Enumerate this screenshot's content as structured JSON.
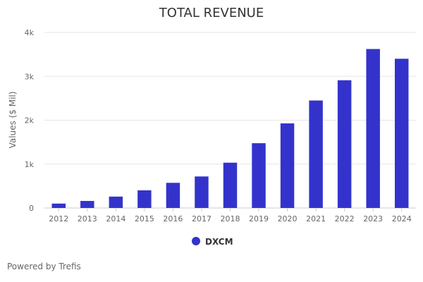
{
  "footer": {
    "text": "Powered by Trefis"
  },
  "chart_data": {
    "type": "bar",
    "title": "TOTAL REVENUE",
    "xlabel": "",
    "ylabel": "Values ($ Mil)",
    "categories": [
      "2012",
      "2013",
      "2014",
      "2015",
      "2016",
      "2017",
      "2018",
      "2019",
      "2020",
      "2021",
      "2022",
      "2023",
      "2024"
    ],
    "series": [
      {
        "name": "DXCM",
        "color": "#3333cc",
        "values": [
          100,
          160,
          259,
          402,
          573,
          718,
          1032,
          1476,
          1927,
          2449,
          2910,
          3622,
          3400
        ]
      }
    ],
    "ylim": [
      0,
      4000
    ],
    "yticks": [
      0,
      1000,
      2000,
      3000,
      4000
    ],
    "ytick_labels": [
      "0",
      "1k",
      "2k",
      "3k",
      "4k"
    ],
    "grid": true,
    "legend_position": "bottom-center"
  }
}
